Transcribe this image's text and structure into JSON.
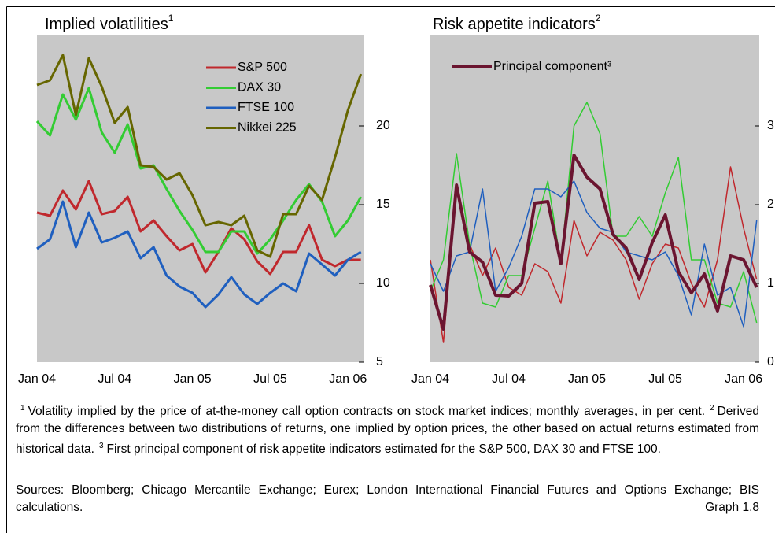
{
  "chart_data": [
    {
      "type": "line",
      "title": "Implied volatilities",
      "title_note": "1",
      "categories": [
        "Jan 04",
        null,
        null,
        null,
        null,
        null,
        "Jul 04",
        null,
        null,
        null,
        null,
        null,
        "Jan 05",
        null,
        null,
        null,
        null,
        null,
        "Jul 05",
        null,
        null,
        null,
        null,
        null,
        "Jan 06",
        null
      ],
      "series": [
        {
          "name": "S&P 500",
          "color": "#c0282d",
          "values": [
            14.5,
            14.3,
            15.9,
            14.7,
            16.5,
            14.4,
            14.6,
            15.5,
            13.3,
            14.0,
            13.0,
            12.1,
            12.5,
            10.7,
            12.0,
            13.5,
            12.8,
            11.4,
            10.6,
            12.0,
            12.0,
            13.7,
            11.5,
            11.1,
            11.5,
            11.5
          ]
        },
        {
          "name": "DAX 30",
          "color": "#33cc33",
          "values": [
            20.3,
            19.4,
            22.0,
            20.4,
            22.4,
            19.6,
            18.3,
            20.1,
            17.3,
            17.5,
            16.0,
            14.6,
            13.4,
            12.0,
            12.0,
            13.3,
            13.3,
            11.9,
            12.8,
            14.0,
            15.3,
            16.3,
            15.2,
            13.0,
            14.0,
            15.5
          ]
        },
        {
          "name": "FTSE 100",
          "color": "#1f5fbf",
          "values": [
            12.2,
            12.8,
            15.2,
            12.3,
            14.5,
            12.6,
            12.9,
            13.3,
            11.6,
            12.3,
            10.5,
            9.8,
            9.4,
            8.5,
            9.3,
            10.4,
            9.3,
            8.7,
            9.4,
            10.0,
            9.5,
            11.9,
            11.2,
            10.5,
            11.5,
            12.0
          ]
        },
        {
          "name": "Nikkei 225",
          "color": "#666600",
          "values": [
            22.6,
            22.9,
            24.5,
            20.7,
            24.3,
            22.5,
            20.2,
            21.2,
            17.5,
            17.4,
            16.6,
            17.0,
            15.6,
            13.7,
            13.9,
            13.7,
            14.3,
            12.1,
            11.7,
            14.4,
            14.4,
            16.2,
            15.3,
            18.0,
            21.0,
            23.3
          ]
        }
      ],
      "ylim": [
        5,
        25.75
      ],
      "yticks": [
        5,
        10,
        15,
        20
      ],
      "legend": "top-right"
    },
    {
      "type": "line",
      "title": "Risk appetite indicators",
      "title_note": "2",
      "categories": [
        "Jan 04",
        null,
        null,
        null,
        null,
        null,
        "Jul 04",
        null,
        null,
        null,
        null,
        null,
        "Jan 05",
        null,
        null,
        null,
        null,
        null,
        "Jul 05",
        null,
        null,
        null,
        null,
        null,
        "Jan 06",
        null
      ],
      "series": [
        {
          "color": "#c0282d",
          "values": [
            1.3,
            0.25,
            2.2,
            1.5,
            1.1,
            1.45,
            0.95,
            0.85,
            1.25,
            1.15,
            0.75,
            1.8,
            1.35,
            1.65,
            1.55,
            1.3,
            0.8,
            1.25,
            1.5,
            1.45,
            1.0,
            0.7,
            1.3,
            2.48,
            1.7,
            1.05
          ]
        },
        {
          "color": "#33cc33",
          "values": [
            0.9,
            1.3,
            2.65,
            1.5,
            0.75,
            0.7,
            1.1,
            1.1,
            1.7,
            2.3,
            1.25,
            3.0,
            3.3,
            2.9,
            1.6,
            1.6,
            1.85,
            1.6,
            2.15,
            2.6,
            1.3,
            1.3,
            0.75,
            0.7,
            1.15,
            0.5
          ]
        },
        {
          "color": "#1f5fbf",
          "values": [
            1.25,
            0.9,
            1.35,
            1.4,
            2.2,
            0.9,
            1.2,
            1.6,
            2.2,
            2.2,
            2.1,
            2.3,
            1.9,
            1.7,
            1.65,
            1.4,
            1.35,
            1.3,
            1.4,
            1.1,
            0.6,
            1.5,
            0.85,
            0.95,
            0.45,
            1.8
          ]
        },
        {
          "name": "Principal component³",
          "color": "#6b1530",
          "width": 4,
          "values": [
            0.98,
            0.42,
            2.25,
            1.4,
            1.27,
            0.85,
            0.84,
            1.0,
            2.02,
            2.04,
            1.25,
            2.63,
            2.35,
            2.2,
            1.62,
            1.45,
            1.05,
            1.52,
            1.87,
            1.15,
            0.88,
            1.12,
            0.65,
            1.35,
            1.3,
            0.95
          ]
        }
      ],
      "ylim": [
        0,
        4.15
      ],
      "yticks": [
        0,
        1,
        2,
        3
      ],
      "legend": "top-left"
    }
  ],
  "notes": [
    {
      "marker": "1",
      "text": "Volatility implied by the price of at-the-money call option contracts on stock market indices; monthly averages, in per cent."
    },
    {
      "marker": "2",
      "text": "Derived from the differences between two distributions of returns, one implied by option prices, the other based on actual returns estimated from historical data."
    },
    {
      "marker": "3",
      "text": "First principal component of risk appetite indicators estimated for the S&P 500, DAX 30 and FTSE 100."
    }
  ],
  "sources": "Sources: Bloomberg; Chicago Mercantile Exchange; Eurex; London International Financial Futures and Options Exchange; BIS calculations.",
  "graph_label": "Graph 1.8"
}
